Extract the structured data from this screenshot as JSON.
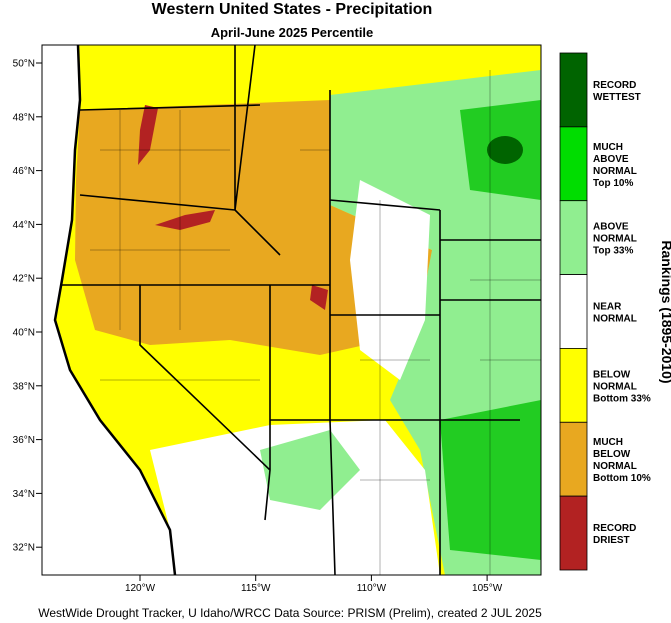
{
  "header": {
    "title": "Western United States - Precipitation",
    "subtitle": "April-June 2025 Percentile"
  },
  "map": {
    "lat_labels": [
      "50°N",
      "48°N",
      "46°N",
      "44°N",
      "42°N",
      "40°N",
      "38°N",
      "36°N",
      "34°N",
      "32°N"
    ],
    "lon_labels": [
      "120°W",
      "115°W",
      "110°W",
      "105°W"
    ]
  },
  "legend": {
    "title": "Rankings (1895-2010)",
    "items": [
      {
        "lines": [
          "RECORD",
          "WETTEST"
        ],
        "color": "#006400"
      },
      {
        "lines": [
          "MUCH",
          "ABOVE",
          "NORMAL",
          "Top 10%"
        ],
        "color": "#00dd00"
      },
      {
        "lines": [
          "ABOVE",
          "NORMAL",
          "Top 33%"
        ],
        "color": "#90ee90"
      },
      {
        "lines": [
          "NEAR",
          "NORMAL"
        ],
        "color": "#ffffff"
      },
      {
        "lines": [
          "BELOW",
          "NORMAL",
          "Bottom 33%"
        ],
        "color": "#ffff00"
      },
      {
        "lines": [
          "MUCH",
          "BELOW",
          "NORMAL",
          "Bottom 10%"
        ],
        "color": "#e8a820"
      },
      {
        "lines": [
          "RECORD",
          "DRIEST"
        ],
        "color": "#b22222"
      }
    ]
  },
  "footer": "WestWide Drought Tracker, U Idaho/WRCC Data Source: PRISM (Prelim), created  2 JUL 2025"
}
